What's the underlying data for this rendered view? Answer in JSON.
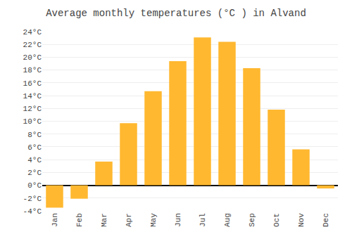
{
  "chart_data": {
    "type": "bar",
    "title": "Average monthly temperatures (°C ) in Alvand",
    "categories": [
      "Jan",
      "Feb",
      "Mar",
      "Apr",
      "May",
      "Jun",
      "Jul",
      "Aug",
      "Sep",
      "Oct",
      "Nov",
      "Dec"
    ],
    "values": [
      -3.5,
      -2.1,
      3.7,
      9.7,
      14.7,
      19.4,
      23.1,
      22.4,
      18.3,
      11.8,
      5.6,
      -0.5
    ],
    "color": "#FFB830",
    "ylim": [
      -4,
      24
    ],
    "yticks": [
      {
        "value": -4,
        "label": "-4°C"
      },
      {
        "value": -2,
        "label": "-2°C"
      },
      {
        "value": 0,
        "label": "0°C"
      },
      {
        "value": 2,
        "label": "2°C"
      },
      {
        "value": 4,
        "label": "4°C"
      },
      {
        "value": 6,
        "label": "6°C"
      },
      {
        "value": 8,
        "label": "8°C"
      },
      {
        "value": 10,
        "label": "10°C"
      },
      {
        "value": 12,
        "label": "12°C"
      },
      {
        "value": 14,
        "label": "14°C"
      },
      {
        "value": 16,
        "label": "16°C"
      },
      {
        "value": 18,
        "label": "18°C"
      },
      {
        "value": 20,
        "label": "20°C"
      },
      {
        "value": 22,
        "label": "22°C"
      },
      {
        "value": 24,
        "label": "24°C"
      }
    ],
    "grid": true
  }
}
